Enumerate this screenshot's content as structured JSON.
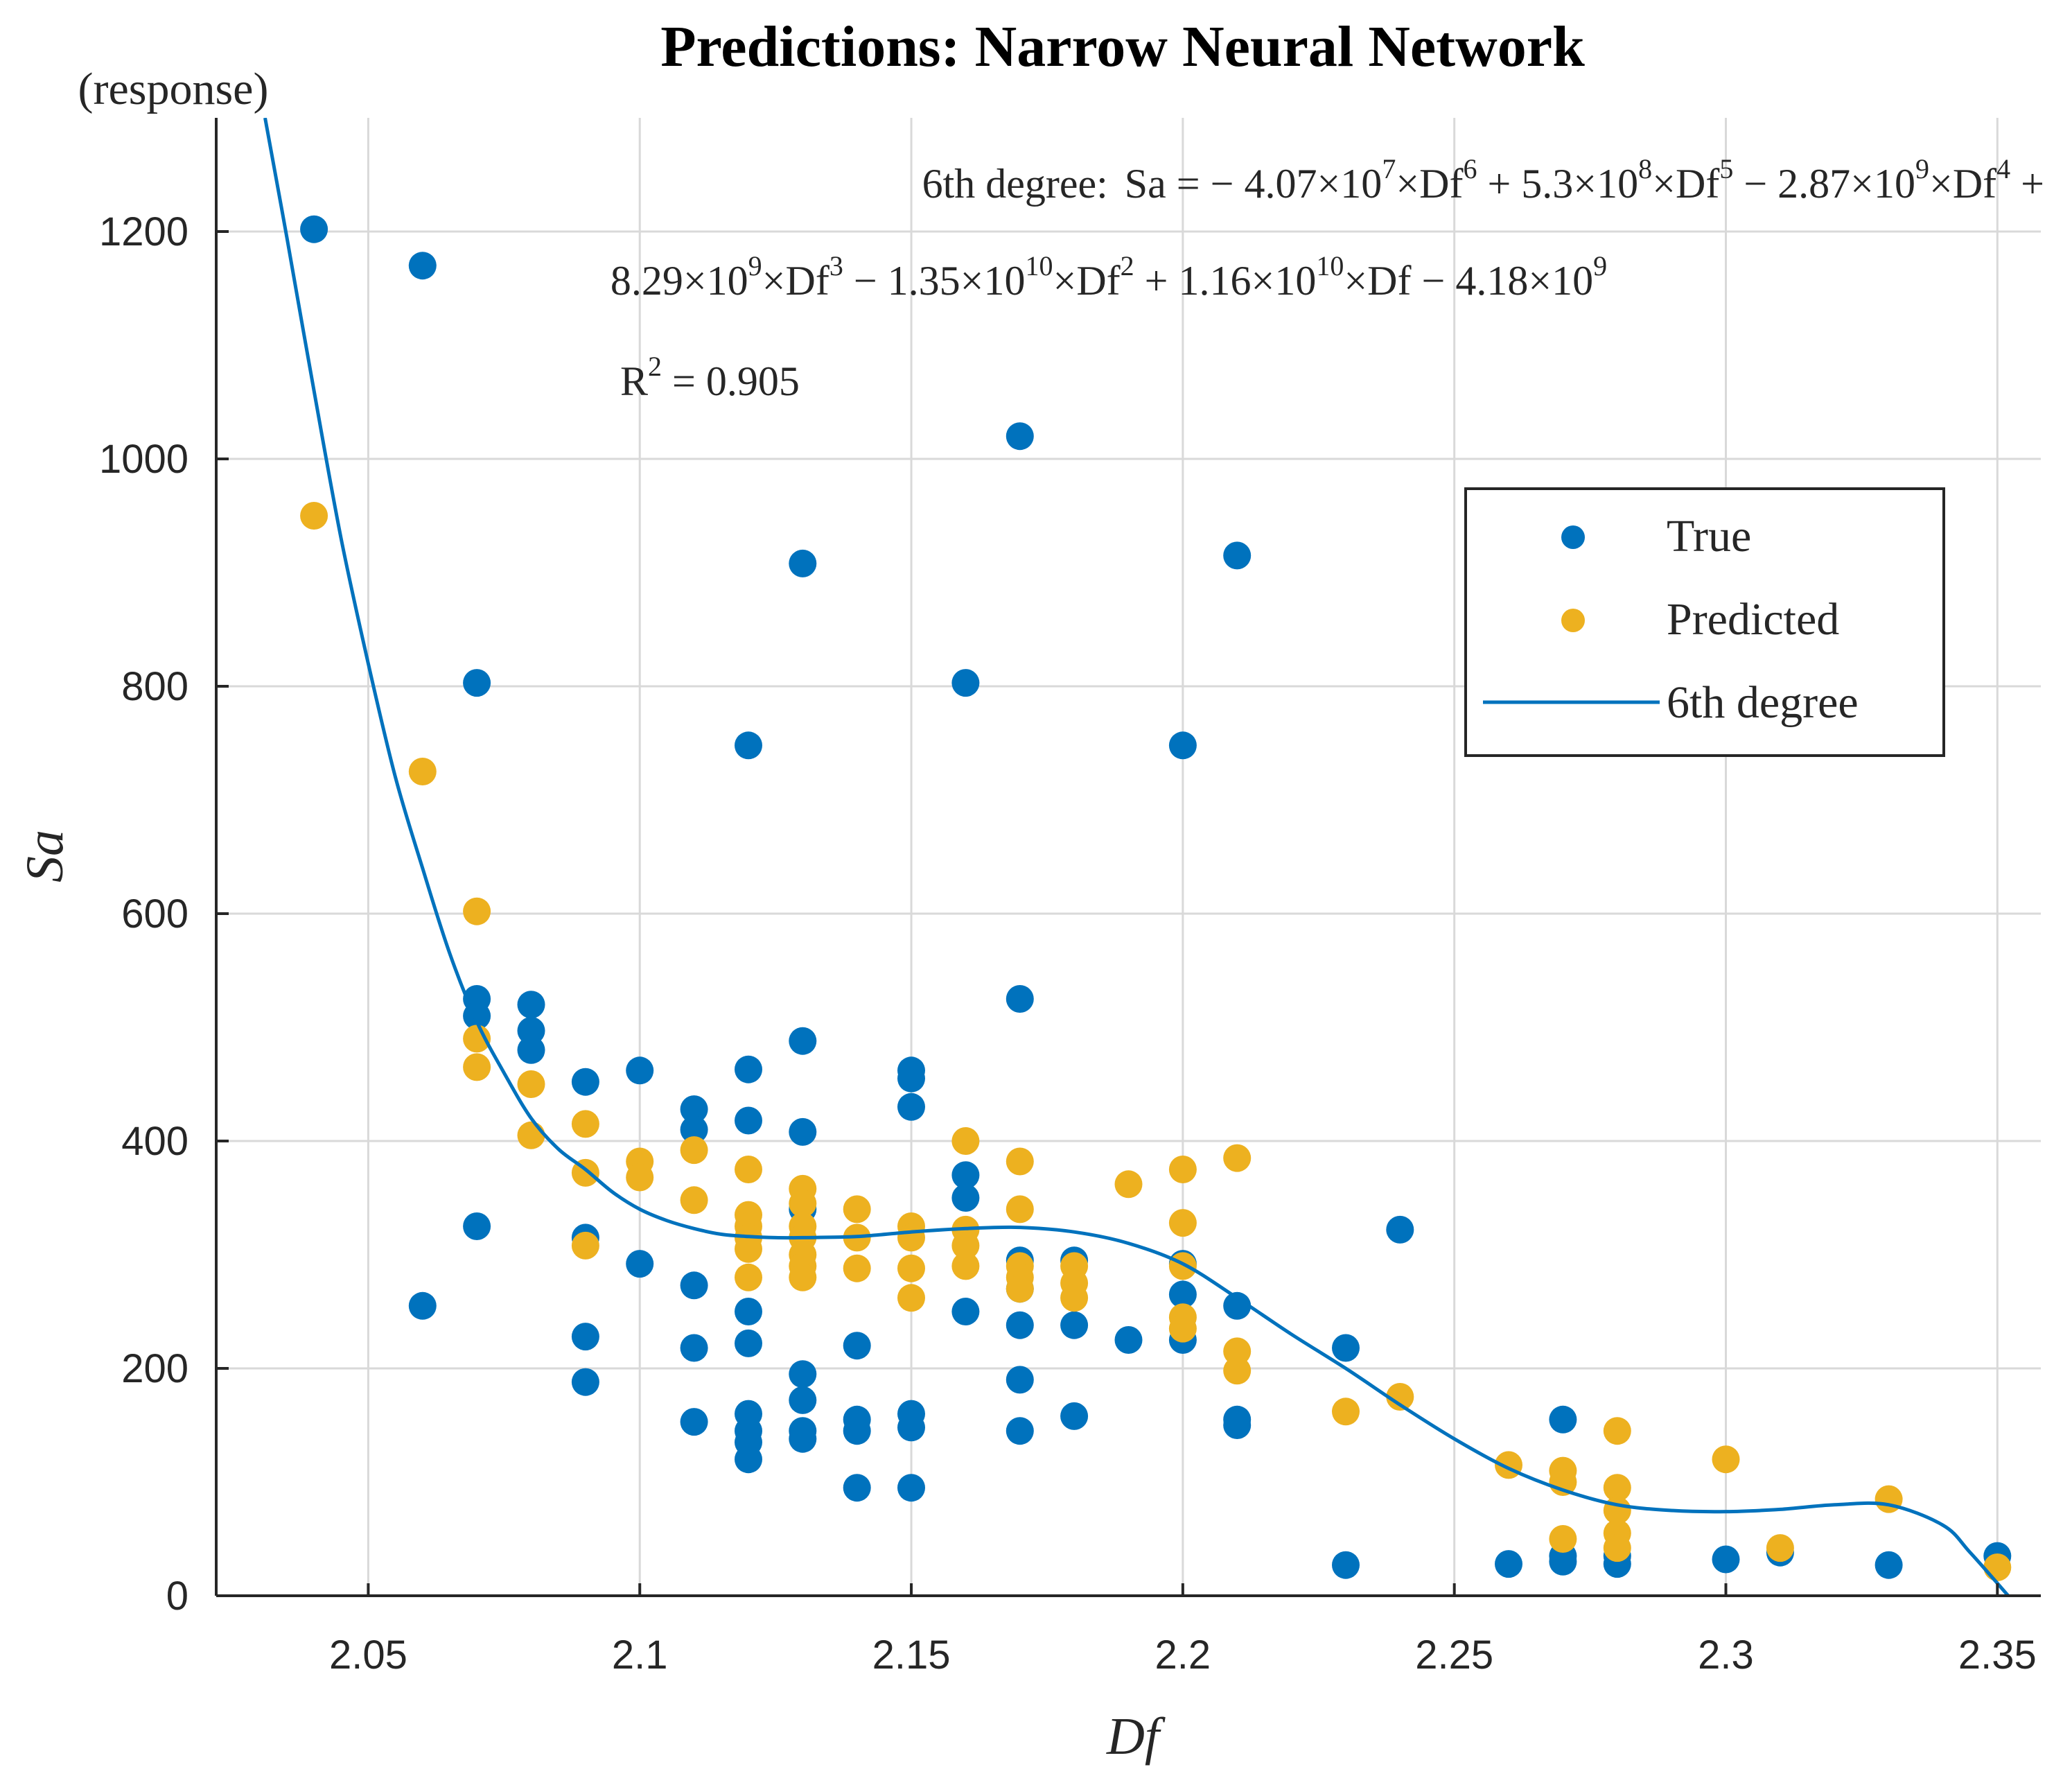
{
  "chart_data": {
    "type": "scatter",
    "title": "Predictions: Narrow Neural Network",
    "xlabel": "Df",
    "ylabel": "Sa",
    "y_unit_label": "(response)",
    "xlim": [
      2.022,
      2.358
    ],
    "ylim": [
      0,
      1300
    ],
    "x_ticks": [
      2.05,
      2.1,
      2.15,
      2.2,
      2.25,
      2.3,
      2.35
    ],
    "x_tick_labels": [
      "2.05",
      "2.1",
      "2.15",
      "2.2",
      "2.25",
      "2.3",
      "2.35"
    ],
    "y_ticks": [
      0,
      200,
      400,
      600,
      800,
      1000,
      1200
    ],
    "y_tick_labels": [
      "0",
      "200",
      "400",
      "600",
      "800",
      "1000",
      "1200"
    ],
    "grid": true,
    "legend_position": "upper-right",
    "series": [
      {
        "name": "True",
        "kind": "scatter",
        "color": "#0072BD",
        "points": [
          [
            2.04,
            1202
          ],
          [
            2.06,
            1170
          ],
          [
            2.06,
            255
          ],
          [
            2.07,
            803
          ],
          [
            2.07,
            525
          ],
          [
            2.07,
            510
          ],
          [
            2.07,
            325
          ],
          [
            2.08,
            520
          ],
          [
            2.08,
            497
          ],
          [
            2.08,
            480
          ],
          [
            2.09,
            452
          ],
          [
            2.09,
            315
          ],
          [
            2.09,
            228
          ],
          [
            2.09,
            188
          ],
          [
            2.1,
            462
          ],
          [
            2.1,
            292
          ],
          [
            2.11,
            428
          ],
          [
            2.11,
            410
          ],
          [
            2.11,
            273
          ],
          [
            2.11,
            218
          ],
          [
            2.11,
            153
          ],
          [
            2.12,
            748
          ],
          [
            2.12,
            463
          ],
          [
            2.12,
            418
          ],
          [
            2.12,
            250
          ],
          [
            2.12,
            222
          ],
          [
            2.12,
            160
          ],
          [
            2.12,
            145
          ],
          [
            2.12,
            135
          ],
          [
            2.12,
            120
          ],
          [
            2.13,
            908
          ],
          [
            2.13,
            488
          ],
          [
            2.13,
            408
          ],
          [
            2.13,
            340
          ],
          [
            2.13,
            195
          ],
          [
            2.13,
            172
          ],
          [
            2.13,
            145
          ],
          [
            2.13,
            138
          ],
          [
            2.14,
            220
          ],
          [
            2.14,
            155
          ],
          [
            2.14,
            145
          ],
          [
            2.14,
            95
          ],
          [
            2.15,
            462
          ],
          [
            2.15,
            455
          ],
          [
            2.15,
            430
          ],
          [
            2.15,
            160
          ],
          [
            2.15,
            148
          ],
          [
            2.15,
            95
          ],
          [
            2.16,
            803
          ],
          [
            2.16,
            370
          ],
          [
            2.16,
            350
          ],
          [
            2.16,
            250
          ],
          [
            2.17,
            1020
          ],
          [
            2.17,
            525
          ],
          [
            2.17,
            295
          ],
          [
            2.17,
            270
          ],
          [
            2.17,
            238
          ],
          [
            2.17,
            190
          ],
          [
            2.17,
            145
          ],
          [
            2.18,
            295
          ],
          [
            2.18,
            238
          ],
          [
            2.18,
            158
          ],
          [
            2.19,
            225
          ],
          [
            2.2,
            748
          ],
          [
            2.2,
            292
          ],
          [
            2.2,
            265
          ],
          [
            2.2,
            225
          ],
          [
            2.21,
            915
          ],
          [
            2.21,
            255
          ],
          [
            2.21,
            155
          ],
          [
            2.21,
            150
          ],
          [
            2.23,
            218
          ],
          [
            2.23,
            27
          ],
          [
            2.24,
            322
          ],
          [
            2.26,
            28
          ],
          [
            2.27,
            155
          ],
          [
            2.27,
            35
          ],
          [
            2.27,
            30
          ],
          [
            2.28,
            35
          ],
          [
            2.28,
            28
          ],
          [
            2.3,
            32
          ],
          [
            2.31,
            38
          ],
          [
            2.33,
            27
          ],
          [
            2.35,
            35
          ]
        ]
      },
      {
        "name": "Predicted",
        "kind": "scatter",
        "color": "#EDB120",
        "points": [
          [
            2.04,
            950
          ],
          [
            2.06,
            725
          ],
          [
            2.07,
            602
          ],
          [
            2.07,
            490
          ],
          [
            2.07,
            465
          ],
          [
            2.08,
            450
          ],
          [
            2.08,
            405
          ],
          [
            2.09,
            415
          ],
          [
            2.09,
            372
          ],
          [
            2.09,
            308
          ],
          [
            2.1,
            382
          ],
          [
            2.1,
            368
          ],
          [
            2.11,
            392
          ],
          [
            2.11,
            348
          ],
          [
            2.12,
            375
          ],
          [
            2.12,
            335
          ],
          [
            2.12,
            325
          ],
          [
            2.12,
            315
          ],
          [
            2.12,
            305
          ],
          [
            2.12,
            280
          ],
          [
            2.13,
            358
          ],
          [
            2.13,
            345
          ],
          [
            2.13,
            325
          ],
          [
            2.13,
            315
          ],
          [
            2.13,
            300
          ],
          [
            2.13,
            290
          ],
          [
            2.13,
            280
          ],
          [
            2.14,
            340
          ],
          [
            2.14,
            315
          ],
          [
            2.14,
            288
          ],
          [
            2.15,
            325
          ],
          [
            2.15,
            315
          ],
          [
            2.15,
            288
          ],
          [
            2.15,
            262
          ],
          [
            2.16,
            400
          ],
          [
            2.16,
            322
          ],
          [
            2.16,
            308
          ],
          [
            2.16,
            290
          ],
          [
            2.17,
            382
          ],
          [
            2.17,
            340
          ],
          [
            2.17,
            290
          ],
          [
            2.17,
            280
          ],
          [
            2.17,
            270
          ],
          [
            2.18,
            290
          ],
          [
            2.18,
            275
          ],
          [
            2.18,
            262
          ],
          [
            2.19,
            362
          ],
          [
            2.2,
            375
          ],
          [
            2.2,
            328
          ],
          [
            2.2,
            290
          ],
          [
            2.2,
            245
          ],
          [
            2.2,
            235
          ],
          [
            2.21,
            385
          ],
          [
            2.21,
            215
          ],
          [
            2.21,
            198
          ],
          [
            2.23,
            162
          ],
          [
            2.24,
            175
          ],
          [
            2.26,
            115
          ],
          [
            2.27,
            110
          ],
          [
            2.27,
            100
          ],
          [
            2.27,
            50
          ],
          [
            2.28,
            145
          ],
          [
            2.28,
            95
          ],
          [
            2.28,
            75
          ],
          [
            2.28,
            55
          ],
          [
            2.28,
            42
          ],
          [
            2.3,
            120
          ],
          [
            2.31,
            42
          ],
          [
            2.33,
            85
          ],
          [
            2.35,
            25
          ]
        ]
      },
      {
        "name": "6th degree",
        "kind": "line",
        "color": "#0072BD",
        "points": [
          [
            2.031,
            1300
          ],
          [
            2.035,
            1195
          ],
          [
            2.04,
            1060
          ],
          [
            2.045,
            930
          ],
          [
            2.05,
            820
          ],
          [
            2.055,
            720
          ],
          [
            2.06,
            640
          ],
          [
            2.065,
            565
          ],
          [
            2.07,
            505
          ],
          [
            2.075,
            460
          ],
          [
            2.08,
            420
          ],
          [
            2.085,
            393
          ],
          [
            2.09,
            375
          ],
          [
            2.095,
            355
          ],
          [
            2.1,
            340
          ],
          [
            2.105,
            330
          ],
          [
            2.11,
            323
          ],
          [
            2.115,
            318
          ],
          [
            2.12,
            316
          ],
          [
            2.125,
            315
          ],
          [
            2.13,
            315
          ],
          [
            2.14,
            316
          ],
          [
            2.15,
            320
          ],
          [
            2.16,
            323
          ],
          [
            2.17,
            324
          ],
          [
            2.18,
            320
          ],
          [
            2.19,
            310
          ],
          [
            2.2,
            292
          ],
          [
            2.21,
            262
          ],
          [
            2.22,
            230
          ],
          [
            2.23,
            200
          ],
          [
            2.24,
            168
          ],
          [
            2.25,
            138
          ],
          [
            2.26,
            112
          ],
          [
            2.27,
            93
          ],
          [
            2.28,
            80
          ],
          [
            2.29,
            75
          ],
          [
            2.3,
            74
          ],
          [
            2.31,
            76
          ],
          [
            2.32,
            80
          ],
          [
            2.33,
            80
          ],
          [
            2.34,
            62
          ],
          [
            2.345,
            38
          ],
          [
            2.352,
            0
          ]
        ]
      }
    ],
    "annotation": {
      "line1": {
        "label": "6th degree:",
        "lhs": "Sa = − 4.07×10",
        "e1": "7",
        "t1": "×Df",
        "p1": "6",
        "t2": " + 5.3×10",
        "e2": "8",
        "t3": "×Df",
        "p2": "5",
        "t4": " − 2.87×10",
        "e3": "9",
        "t5": "×Df",
        "p3": "4",
        "t6": " +"
      },
      "line2": {
        "t1": "8.29×10",
        "e1": "9",
        "t2": "×Df",
        "p1": "3",
        "t3": " − 1.35×10",
        "e2": "10",
        "t4": "×Df",
        "p2": "2",
        "t5": " + 1.16×10",
        "e3": "10",
        "t6": "×Df − 4.18×10",
        "e4": "9"
      },
      "r2": {
        "label": "R",
        "exp": "2",
        "value": " = 0.905"
      }
    }
  }
}
